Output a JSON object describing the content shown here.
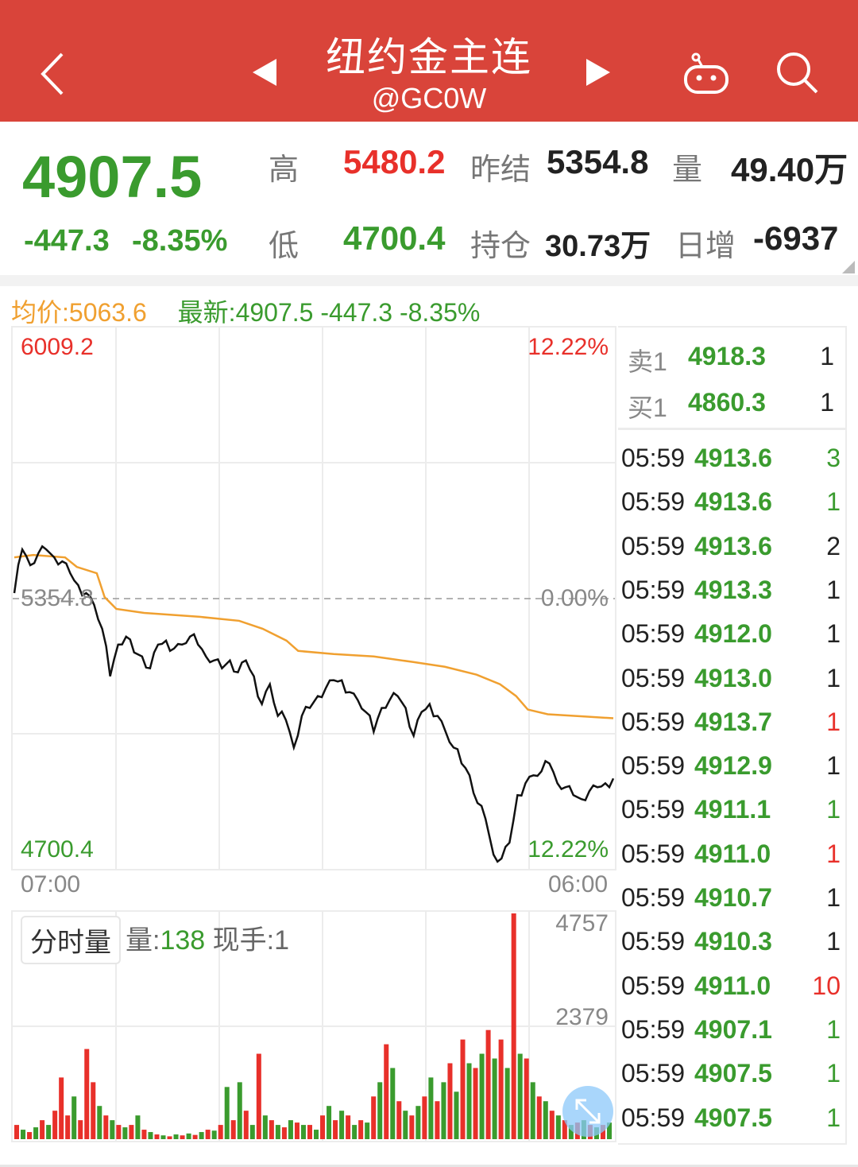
{
  "header": {
    "title": "纽约金主连",
    "code": "@GC0W",
    "bg": "#d9443a",
    "icons": [
      "back-chevron-icon",
      "prev-triangle-icon",
      "next-triangle-icon",
      "robot-icon",
      "search-icon"
    ]
  },
  "quote": {
    "last": "4907.5",
    "change": "-447.3",
    "change_pct": "-8.35%",
    "high_label": "高",
    "high": "5480.2",
    "low_label": "低",
    "low": "4700.4",
    "prev_settle_label": "昨结",
    "prev_settle": "5354.8",
    "open_int_label": "持仓",
    "open_int": "30.73万",
    "volume_label": "量",
    "volume": "49.40万",
    "daily_inc_label": "日增",
    "daily_inc": "-6937"
  },
  "infoline": {
    "avg": "均价:5063.6",
    "latest": "最新:4907.5 -447.3 -8.35%"
  },
  "colors": {
    "up": "#e8302a",
    "down": "#3a9b2e",
    "avg_line": "#f0a030",
    "price_line": "#111111"
  },
  "chart_data": [
    {
      "type": "line",
      "ylim": [
        4700.4,
        6009.2
      ],
      "y_ticks_left": [
        "6009.2",
        "5354.8",
        "4700.4"
      ],
      "y_ticks_right": [
        "12.22%",
        "0.00%",
        "12.22%"
      ],
      "x_ticks": [
        "07:00",
        "06:00"
      ],
      "baseline": 5354.8,
      "series": [
        {
          "key": "price",
          "values": [
            5368.6,
            5477,
            5437.8,
            5467.2,
            5477,
            5457.3,
            5447.4,
            5417.9,
            5388.3,
            5368.6,
            5339,
            5279.9,
            5161.6,
            5240.5,
            5260.2,
            5220.8,
            5210.9,
            5181.4,
            5240.5,
            5250.3,
            5230.6,
            5240.5,
            5260.2,
            5240.5,
            5210.9,
            5201.1,
            5181.4,
            5201.1,
            5171.5,
            5201.1,
            5161.6,
            5092.6,
            5141.9,
            5063.1,
            5053.2,
            4984.3,
            5063.1,
            5082.8,
            5112.4,
            5132.1,
            5151.8,
            5151.8,
            5122.2,
            5102.5,
            5072.9,
            5023.7,
            5082.8,
            5102.5,
            5112.4,
            5082.8,
            5013.8,
            5072.9,
            5092.6,
            5063.1,
            5023.7,
            4984.3,
            4944.8,
            4915.3,
            4846.3,
            4806.9,
            4718.2,
            4708.3,
            4747.7,
            4866,
            4895.6,
            4915.3,
            4925.1,
            4944.8,
            4895.6,
            4885.7,
            4866,
            4856.1,
            4875.8,
            4885.7,
            4895.6,
            4907.5
          ]
        },
        {
          "key": "avg",
          "points": [
            [
              "07:00",
              5457.3
            ],
            [
              "07:44",
              5463.2
            ],
            [
              "08:57",
              5457.3
            ],
            [
              "09:24",
              5433.6
            ],
            [
              "10:10",
              5417.9
            ],
            [
              "10:28",
              5358.7
            ],
            [
              "10:55",
              5329.2
            ],
            [
              "11:59",
              5319.3
            ],
            [
              "14:07",
              5309.5
            ],
            [
              "15:38",
              5299.6
            ],
            [
              "16:32",
              5279.9
            ],
            [
              "17:27",
              5250.3
            ],
            [
              "17:54",
              5224.7
            ],
            [
              "19:16",
              5216.8
            ],
            [
              "20:48",
              5210.9
            ],
            [
              "22:19",
              5197.1
            ],
            [
              "23:32",
              5185.3
            ],
            [
              "00:45",
              5165.6
            ],
            [
              "01:39",
              5141.9
            ],
            [
              "02:16",
              5112.4
            ],
            [
              "02:43",
              5078.9
            ],
            [
              "03:29",
              5067.1
            ],
            [
              "05:00",
              5061.1
            ],
            [
              "06:00",
              5057.2
            ]
          ]
        }
      ]
    },
    {
      "type": "bar",
      "ylim": [
        0,
        4757
      ],
      "y_ticks": [
        "4757",
        "2379"
      ],
      "values": [
        300,
        200,
        150,
        250,
        400,
        300,
        600,
        1300,
        500,
        900,
        400,
        1900,
        1200,
        700,
        500,
        400,
        300,
        250,
        300,
        500,
        200,
        150,
        100,
        80,
        60,
        100,
        80,
        120,
        90,
        150,
        200,
        180,
        300,
        1100,
        400,
        1200,
        600,
        300,
        1800,
        500,
        400,
        300,
        250,
        400,
        350,
        300,
        300,
        200,
        500,
        700,
        400,
        600,
        500,
        300,
        400,
        350,
        900,
        1200,
        2000,
        1500,
        800,
        600,
        500,
        700,
        900,
        1300,
        800,
        1200,
        1600,
        1000,
        2100,
        1600,
        1500,
        1800,
        2300,
        1700,
        2100,
        1500,
        4757,
        1800,
        1700,
        1200,
        900,
        800,
        600,
        500,
        400,
        300,
        350,
        400,
        300,
        250,
        300,
        350
      ],
      "red_idx": [
        7,
        11,
        20,
        38,
        58,
        66,
        70,
        74,
        78,
        80,
        82
      ]
    }
  ],
  "volume_panel": {
    "tag": "分时量",
    "vol_label": "量:",
    "vol": "138",
    "hand_label": "现手:1"
  },
  "book": {
    "ask": {
      "label": "卖1",
      "price": "4918.3",
      "qty": "1"
    },
    "bid": {
      "label": "买1",
      "price": "4860.3",
      "qty": "1"
    },
    "trades": [
      {
        "t": "05:59",
        "p": "4913.6",
        "q": "3",
        "c": "green"
      },
      {
        "t": "05:59",
        "p": "4913.6",
        "q": "1",
        "c": "green"
      },
      {
        "t": "05:59",
        "p": "4913.6",
        "q": "2",
        "c": "dark"
      },
      {
        "t": "05:59",
        "p": "4913.3",
        "q": "1",
        "c": "dark"
      },
      {
        "t": "05:59",
        "p": "4912.0",
        "q": "1",
        "c": "dark"
      },
      {
        "t": "05:59",
        "p": "4913.0",
        "q": "1",
        "c": "dark"
      },
      {
        "t": "05:59",
        "p": "4913.7",
        "q": "1",
        "c": "red"
      },
      {
        "t": "05:59",
        "p": "4912.9",
        "q": "1",
        "c": "dark"
      },
      {
        "t": "05:59",
        "p": "4911.1",
        "q": "1",
        "c": "green"
      },
      {
        "t": "05:59",
        "p": "4911.0",
        "q": "1",
        "c": "red"
      },
      {
        "t": "05:59",
        "p": "4910.7",
        "q": "1",
        "c": "dark"
      },
      {
        "t": "05:59",
        "p": "4910.3",
        "q": "1",
        "c": "dark"
      },
      {
        "t": "05:59",
        "p": "4911.0",
        "q": "10",
        "c": "red"
      },
      {
        "t": "05:59",
        "p": "4907.1",
        "q": "1",
        "c": "green"
      },
      {
        "t": "05:59",
        "p": "4907.5",
        "q": "1",
        "c": "green"
      },
      {
        "t": "05:59",
        "p": "4907.5",
        "q": "1",
        "c": "green"
      }
    ]
  }
}
